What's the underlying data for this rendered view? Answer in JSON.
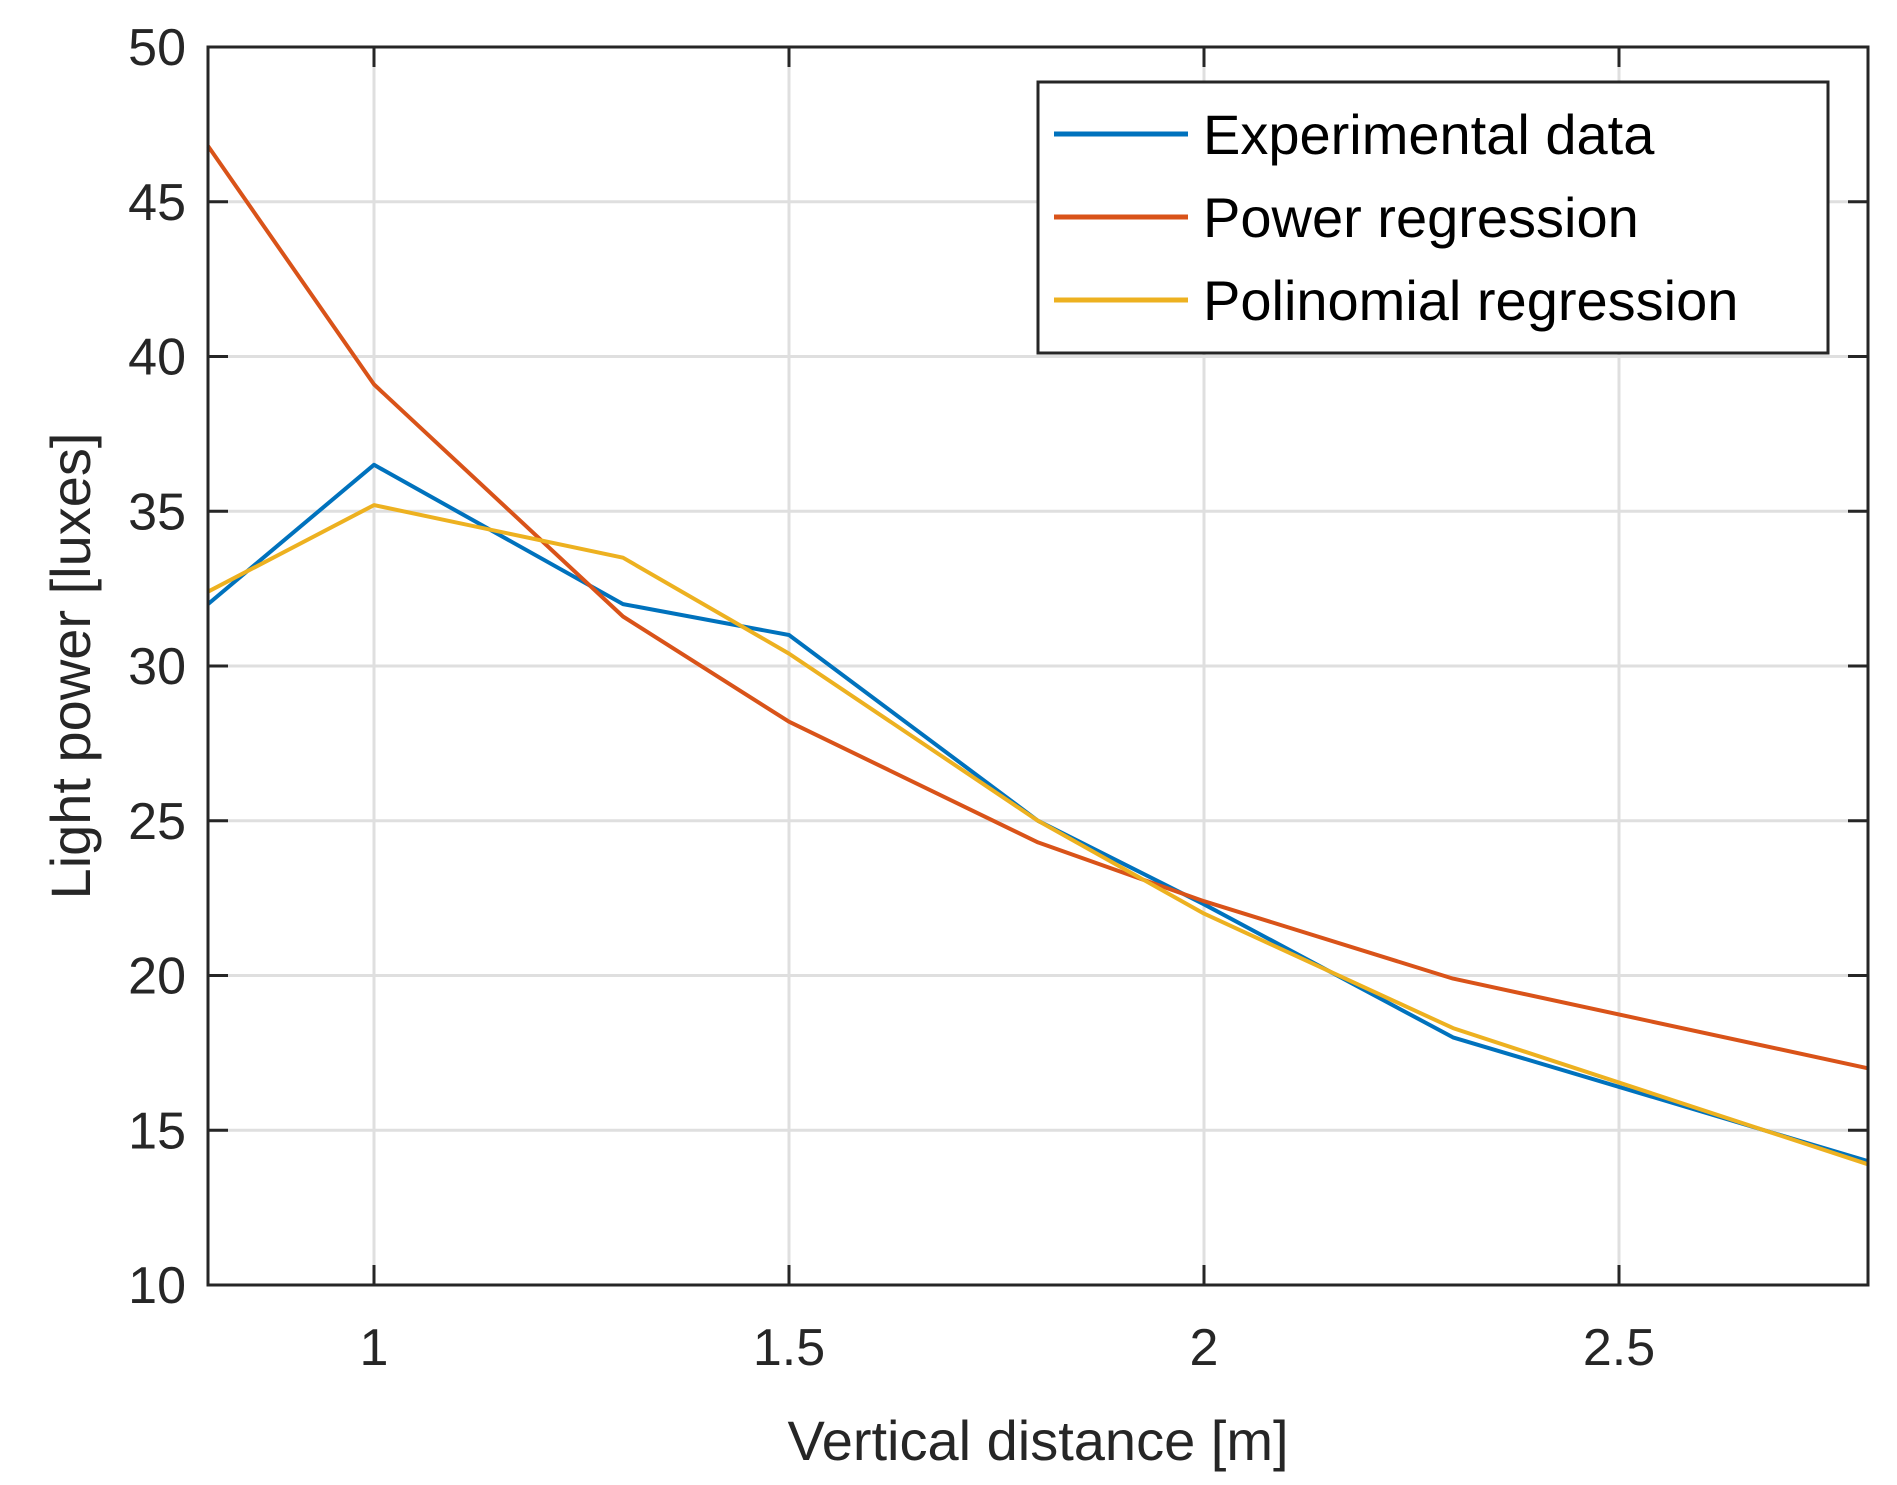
{
  "chart_data": {
    "type": "line",
    "xlabel": "Vertical distance [m]",
    "ylabel": "Light power [luxes]",
    "xlim": [
      0.8,
      2.8
    ],
    "ylim": [
      10,
      50
    ],
    "xticks": [
      1,
      1.5,
      2,
      2.5
    ],
    "xtick_labels": [
      "1",
      "1.5",
      "2",
      "2.5"
    ],
    "yticks": [
      10,
      15,
      20,
      25,
      30,
      35,
      40,
      45,
      50
    ],
    "ytick_labels": [
      "10",
      "15",
      "20",
      "25",
      "30",
      "35",
      "40",
      "45",
      "50"
    ],
    "grid": true,
    "legend_position": "top-right",
    "series": [
      {
        "name": "Experimental data",
        "color": "#0072BD",
        "x": [
          0.8,
          1.0,
          1.3,
          1.5,
          1.8,
          2.0,
          2.3,
          2.8
        ],
        "y": [
          32,
          36.5,
          32,
          31,
          25,
          22.3,
          18,
          14
        ]
      },
      {
        "name": "Power regression",
        "color": "#D95319",
        "x": [
          0.8,
          1.0,
          1.3,
          1.5,
          1.8,
          2.0,
          2.3,
          2.8
        ],
        "y": [
          46.8,
          39.1,
          31.6,
          28.2,
          24.3,
          22.4,
          19.9,
          17.0
        ]
      },
      {
        "name": "Polinomial regression",
        "color": "#EDB120",
        "x": [
          0.8,
          1.0,
          1.3,
          1.5,
          1.8,
          2.0,
          2.3,
          2.8
        ],
        "y": [
          32.4,
          35.2,
          33.5,
          30.4,
          25.0,
          22.0,
          18.3,
          13.9
        ]
      }
    ]
  }
}
